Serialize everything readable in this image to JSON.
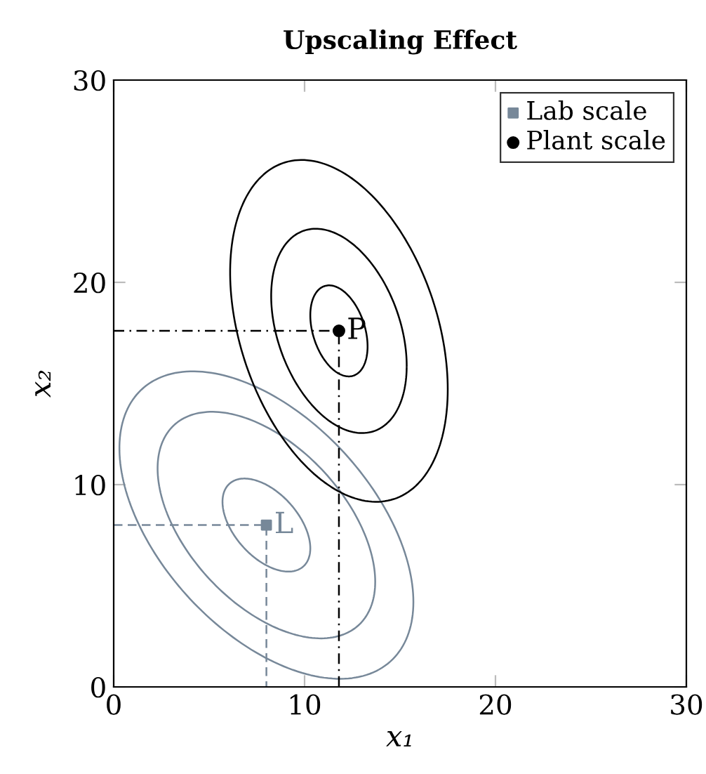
{
  "chart_data": {
    "type": "line",
    "title": "Upscaling Effect",
    "xlabel": "x₁",
    "ylabel": "x₂",
    "xlim": [
      0,
      30
    ],
    "ylim": [
      0,
      30
    ],
    "xticks": [
      0,
      10,
      20,
      30
    ],
    "yticks": [
      0,
      10,
      20,
      30
    ],
    "grid": false,
    "legend": "top right",
    "series": [
      {
        "color": "#778899",
        "line_style": "dashed",
        "x": [
          0,
          8,
          8
        ],
        "values": [
          8,
          8,
          0
        ]
      },
      {
        "color": "#000000",
        "line_style": "dashdot",
        "x": [
          0,
          11.8,
          11.8
        ],
        "values": [
          17.6,
          17.6,
          0
        ]
      },
      {
        "type": "scatter",
        "name": "Lab scale",
        "color": "#778899",
        "marker": "square",
        "x": [
          8
        ],
        "values": [
          8
        ]
      },
      {
        "type": "scatter",
        "name": "Plant scale",
        "color": "#000000",
        "marker": "circle",
        "x": [
          11.8
        ],
        "values": [
          17.6
        ]
      }
    ],
    "annotations": [
      {
        "text": "L",
        "x": 8,
        "y": 8
      },
      {
        "text": "P",
        "x": 11.8,
        "y": 17.6
      }
    ]
  }
}
